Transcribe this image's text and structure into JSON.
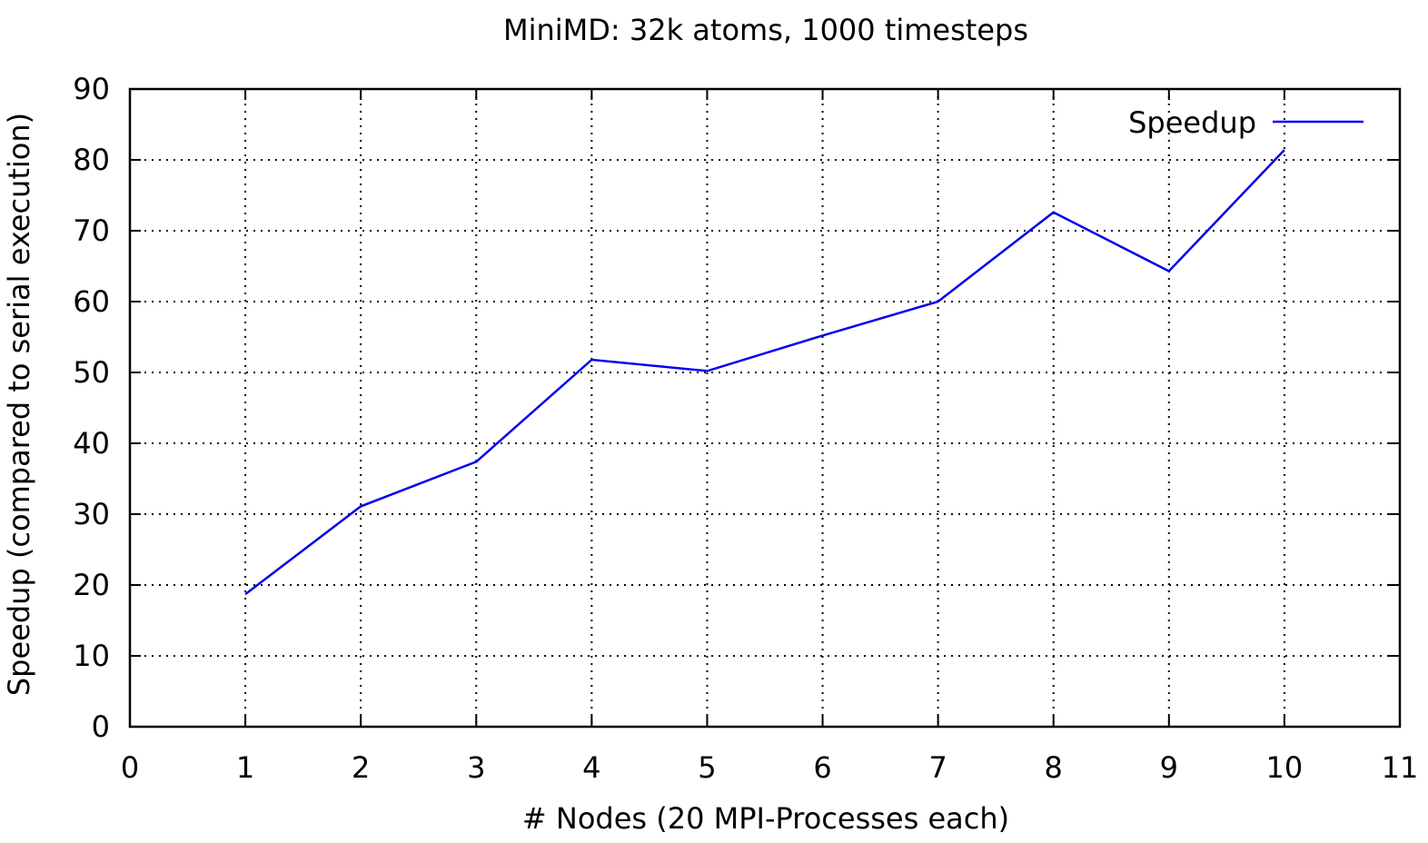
{
  "chart_data": {
    "type": "line",
    "title": "MiniMD: 32k atoms, 1000 timesteps",
    "xlabel": "# Nodes (20 MPI-Processes each)",
    "ylabel": "Speedup (compared to serial execution)",
    "xlim": [
      0,
      11
    ],
    "ylim": [
      0,
      90
    ],
    "xticks": [
      "0",
      "1",
      "2",
      "3",
      "4",
      "5",
      "6",
      "7",
      "8",
      "9",
      "10",
      "11"
    ],
    "yticks": [
      "0",
      "10",
      "20",
      "30",
      "40",
      "50",
      "60",
      "70",
      "80",
      "90"
    ],
    "grid": true,
    "legend_position": "top-right",
    "series": [
      {
        "name": "Speedup",
        "color": "#0000ee",
        "x": [
          1,
          2,
          3,
          4,
          5,
          6,
          7,
          8,
          9,
          10
        ],
        "y": [
          18.7,
          31.1,
          37.4,
          51.8,
          50.2,
          55.2,
          60.0,
          72.6,
          64.3,
          81.4
        ]
      }
    ]
  }
}
